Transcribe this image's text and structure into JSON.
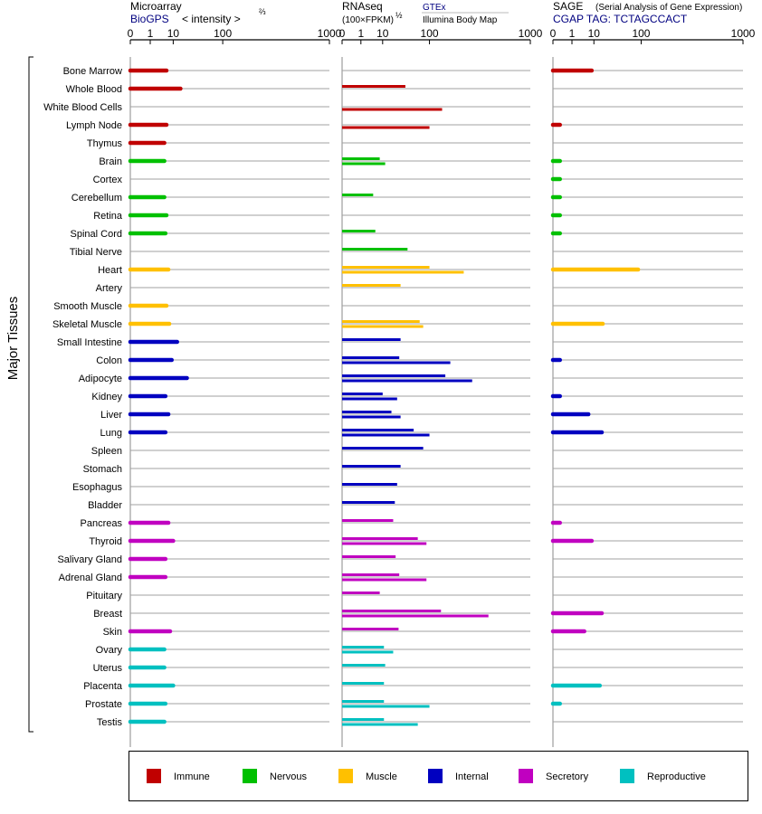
{
  "chart_data": {
    "type": "bar",
    "orientation": "horizontal",
    "y_axis_label": "Major Tissues",
    "grid": true,
    "legend_position": "bottom",
    "categories": [
      "Bone Marrow",
      "Whole Blood",
      "White Blood Cells",
      "Lymph Node",
      "Thymus",
      "Brain",
      "Cortex",
      "Cerebellum",
      "Retina",
      "Spinal Cord",
      "Tibial Nerve",
      "Heart",
      "Artery",
      "Smooth Muscle",
      "Skeletal Muscle",
      "Small Intestine",
      "Colon",
      "Adipocyte",
      "Kidney",
      "Liver",
      "Lung",
      "Spleen",
      "Stomach",
      "Esophagus",
      "Bladder",
      "Pancreas",
      "Thyroid",
      "Salivary Gland",
      "Adrenal Gland",
      "Pituitary",
      "Breast",
      "Skin",
      "Ovary",
      "Uterus",
      "Placenta",
      "Prostate",
      "Testis"
    ],
    "tissue_groups": [
      "Immune",
      "Immune",
      "Immune",
      "Immune",
      "Immune",
      "Nervous",
      "Nervous",
      "Nervous",
      "Nervous",
      "Nervous",
      "Nervous",
      "Muscle",
      "Muscle",
      "Muscle",
      "Muscle",
      "Internal",
      "Internal",
      "Internal",
      "Internal",
      "Internal",
      "Internal",
      "Internal",
      "Internal",
      "Internal",
      "Internal",
      "Secretory",
      "Secretory",
      "Secretory",
      "Secretory",
      "Secretory",
      "Secretory",
      "Secretory",
      "Reproductive",
      "Reproductive",
      "Reproductive",
      "Reproductive",
      "Reproductive"
    ],
    "legend": [
      {
        "name": "Immune",
        "color": "#c00000"
      },
      {
        "name": "Nervous",
        "color": "#00c000"
      },
      {
        "name": "Muscle",
        "color": "#ffc000"
      },
      {
        "name": "Internal",
        "color": "#0000c0"
      },
      {
        "name": "Secretory",
        "color": "#c000c0"
      },
      {
        "name": "Reproductive",
        "color": "#00c0c0"
      }
    ],
    "panels": [
      {
        "id": "microarray",
        "title": "Microarray",
        "subtitle": "BioGPS",
        "axis_label": "< intensity >",
        "axis_exponent": "⅔",
        "ticks": [
          "0",
          "1",
          "10",
          "100",
          "1000"
        ],
        "tick_values": [
          0,
          1,
          10,
          100,
          1000
        ],
        "series": [
          {
            "name": "BioGPS",
            "values": [
              6,
              16,
              null,
              6,
              5,
              5,
              null,
              5,
              6,
              5.5,
              null,
              7,
              null,
              6,
              7.5,
              13,
              9,
              23,
              5.5,
              7,
              5.5,
              null,
              null,
              null,
              null,
              7,
              10,
              5.5,
              5.5,
              null,
              null,
              8,
              5,
              5,
              10,
              5.5,
              5
            ]
          }
        ]
      },
      {
        "id": "rnaseq",
        "title": "RNAseq",
        "axis_label": "(100×FPKM)",
        "axis_exponent": "½",
        "ticks": [
          "0",
          "1",
          "10",
          "100",
          "1000"
        ],
        "tick_values": [
          0,
          1,
          10,
          100,
          1000
        ],
        "series": [
          {
            "name": "GTEx",
            "color": "#000080",
            "values": [
              null,
              38,
              null,
              null,
              null,
              8,
              null,
              4.5,
              null,
              5.5,
              42,
              100,
              30,
              null,
              70,
              30,
              28,
              165,
              10,
              18,
              55,
              80,
              30,
              25,
              22,
              20,
              65,
              23,
              28,
              8,
              145,
              27,
              11,
              12,
              11,
              11,
              11
            ]
          },
          {
            "name": "Illumina Body Map",
            "color": "#000000",
            "values": [
              null,
              null,
              150,
              100,
              null,
              12,
              null,
              null,
              null,
              null,
              null,
              270,
              null,
              null,
              80,
              null,
              190,
              330,
              25,
              30,
              100,
              null,
              null,
              null,
              null,
              null,
              90,
              null,
              90,
              null,
              470,
              null,
              20,
              null,
              null,
              100,
              65
            ]
          }
        ]
      },
      {
        "id": "sage",
        "title": "SAGE",
        "subtitle_note": "(Serial Analysis of Gene Expression)",
        "subtitle": "CGAP TAG: TCTAGCCACT",
        "ticks": [
          "0",
          "1",
          "10",
          "100",
          "1000"
        ],
        "tick_values": [
          0,
          1,
          10,
          100,
          1000
        ],
        "series": [
          {
            "name": "CGAP",
            "values": [
              8.5,
              null,
              null,
              0.05,
              null,
              0.05,
              0.05,
              0.05,
              0.05,
              0.05,
              null,
              90,
              null,
              null,
              18,
              null,
              0.05,
              null,
              0.05,
              6.5,
              17,
              null,
              null,
              null,
              null,
              0.05,
              8.5,
              null,
              null,
              null,
              17,
              4.5,
              null,
              null,
              15,
              0.05,
              null
            ]
          }
        ]
      }
    ]
  }
}
